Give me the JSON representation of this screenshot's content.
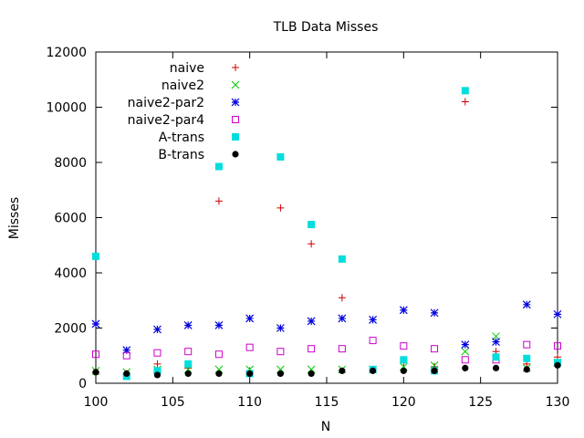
{
  "chart_data": {
    "type": "scatter",
    "title": "TLB Data Misses",
    "xlabel": "N",
    "ylabel": "Misses",
    "xlim": [
      100,
      130
    ],
    "ylim": [
      0,
      12000
    ],
    "xticks": [
      100,
      105,
      110,
      115,
      120,
      125,
      130
    ],
    "yticks": [
      0,
      2000,
      4000,
      6000,
      8000,
      10000,
      12000
    ],
    "grid": false,
    "legend_position": "top-left",
    "series": [
      {
        "name": "naive",
        "marker": "plus",
        "color": "#cc0000",
        "x": [
          100,
          102,
          104,
          106,
          108,
          110,
          112,
          114,
          116,
          118,
          120,
          122,
          124,
          126,
          128,
          130
        ],
        "y": [
          400,
          350,
          700,
          550,
          6600,
          450,
          6350,
          5050,
          3100,
          500,
          750,
          600,
          10200,
          1150,
          700,
          950
        ]
      },
      {
        "name": "naive2",
        "marker": "cross",
        "color": "#00cc00",
        "x": [
          100,
          102,
          104,
          106,
          108,
          110,
          112,
          114,
          116,
          118,
          120,
          122,
          124,
          126,
          128,
          130
        ],
        "y": [
          450,
          400,
          500,
          500,
          500,
          500,
          500,
          500,
          500,
          500,
          600,
          650,
          1150,
          1700,
          550,
          750
        ]
      },
      {
        "name": "naive2-par2",
        "marker": "asterisk",
        "color": "#0000dd",
        "x": [
          100,
          102,
          104,
          106,
          108,
          110,
          112,
          114,
          116,
          118,
          120,
          122,
          124,
          126,
          128,
          130
        ],
        "y": [
          2150,
          1200,
          1950,
          2100,
          2100,
          2350,
          2000,
          2250,
          2350,
          2300,
          2650,
          2550,
          1400,
          1500,
          2850,
          2500
        ]
      },
      {
        "name": "naive2-par4",
        "marker": "square-open",
        "color": "#cc00cc",
        "x": [
          100,
          102,
          104,
          106,
          108,
          110,
          112,
          114,
          116,
          118,
          120,
          122,
          124,
          126,
          128,
          130
        ],
        "y": [
          1050,
          1000,
          1100,
          1150,
          1050,
          1300,
          1150,
          1250,
          1250,
          1550,
          1350,
          1250,
          850,
          850,
          1400,
          1350
        ]
      },
      {
        "name": "A-trans",
        "marker": "square-filled",
        "color": "#00dddd",
        "x": [
          100,
          102,
          104,
          106,
          108,
          110,
          112,
          114,
          116,
          118,
          120,
          122,
          124,
          126,
          128,
          130
        ],
        "y": [
          4600,
          250,
          450,
          700,
          7850,
          350,
          8200,
          5750,
          4500,
          500,
          850,
          450,
          10600,
          950,
          900,
          750
        ]
      },
      {
        "name": "B-trans",
        "marker": "circle-filled",
        "color": "#000000",
        "x": [
          100,
          102,
          104,
          106,
          108,
          110,
          112,
          114,
          116,
          118,
          120,
          122,
          124,
          126,
          128,
          130
        ],
        "y": [
          400,
          350,
          300,
          350,
          350,
          350,
          350,
          350,
          450,
          450,
          450,
          450,
          550,
          550,
          500,
          650
        ]
      }
    ]
  }
}
